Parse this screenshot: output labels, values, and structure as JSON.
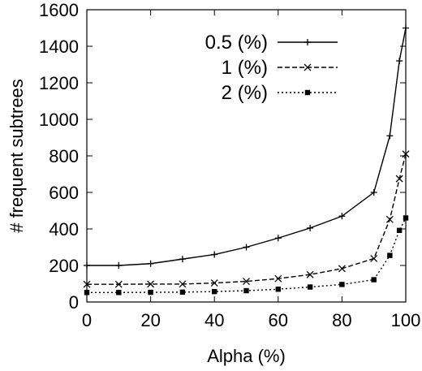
{
  "chart_data": {
    "type": "line",
    "xlabel": "Alpha (%)",
    "ylabel": "# frequent subtrees",
    "xlim": [
      0,
      100
    ],
    "ylim": [
      0,
      1600
    ],
    "xticks": [
      0,
      20,
      40,
      60,
      80,
      100
    ],
    "yticks": [
      0,
      200,
      400,
      600,
      800,
      1000,
      1200,
      1400,
      1600
    ],
    "legend_position": "top-right",
    "grid": false,
    "series": [
      {
        "name": "0.5 (%)",
        "marker": "plus",
        "dash": "solid",
        "color": "#000000",
        "x": [
          0,
          10,
          20,
          30,
          40,
          50,
          60,
          70,
          80,
          90,
          95,
          98,
          100
        ],
        "y": [
          200,
          200,
          210,
          235,
          260,
          300,
          350,
          405,
          470,
          600,
          910,
          1320,
          1500
        ]
      },
      {
        "name": "1 (%)",
        "marker": "x",
        "dash": "dashed",
        "color": "#000000",
        "x": [
          0,
          10,
          20,
          30,
          40,
          50,
          60,
          70,
          80,
          90,
          95,
          98,
          100
        ],
        "y": [
          97,
          97,
          98,
          98,
          104,
          113,
          128,
          150,
          183,
          238,
          452,
          675,
          810
        ]
      },
      {
        "name": "2 (%)",
        "marker": "filled-square",
        "dash": "dotted",
        "color": "#000000",
        "x": [
          0,
          10,
          20,
          30,
          40,
          50,
          60,
          70,
          80,
          90,
          95,
          98,
          100
        ],
        "y": [
          52,
          52,
          53,
          54,
          57,
          62,
          70,
          82,
          96,
          122,
          255,
          392,
          460
        ]
      }
    ]
  }
}
